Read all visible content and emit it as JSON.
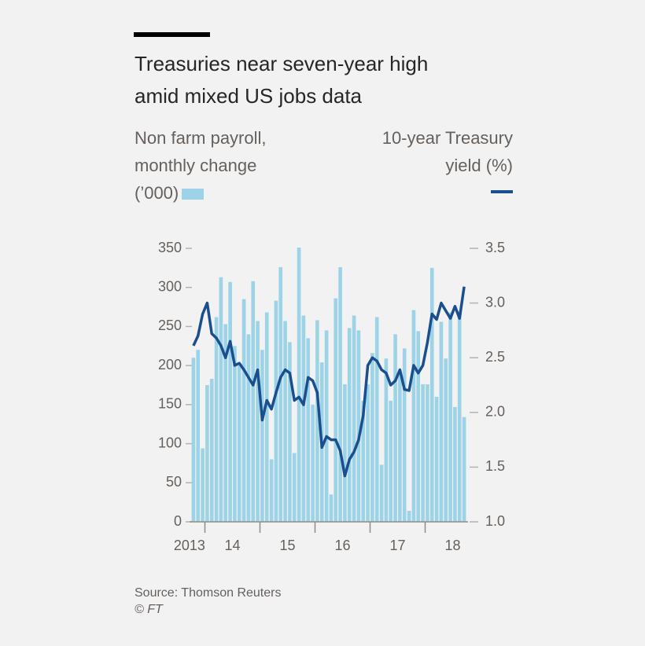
{
  "chart_data": {
    "type": "bar+line",
    "title": "Treasuries near seven-year high amid mixed US jobs data",
    "source": "Source: Thomson Reuters",
    "credit": "© FT",
    "x": [
      2013.75,
      2013.833,
      2013.917,
      2014,
      2014.083,
      2014.167,
      2014.25,
      2014.333,
      2014.417,
      2014.5,
      2014.583,
      2014.667,
      2014.75,
      2014.833,
      2014.917,
      2015,
      2015.083,
      2015.167,
      2015.25,
      2015.333,
      2015.417,
      2015.5,
      2015.583,
      2015.667,
      2015.75,
      2015.833,
      2015.917,
      2016,
      2016.083,
      2016.167,
      2016.25,
      2016.333,
      2016.417,
      2016.5,
      2016.583,
      2016.667,
      2016.75,
      2016.833,
      2016.917,
      2017,
      2017.083,
      2017.167,
      2017.25,
      2017.333,
      2017.417,
      2017.5,
      2017.583,
      2017.667,
      2017.75,
      2017.833,
      2017.917,
      2018,
      2018.083,
      2018.167,
      2018.25,
      2018.333,
      2018.417,
      2018.5,
      2018.583,
      2018.667
    ],
    "xlim": [
      2013.75,
      2018.75
    ],
    "xticks": [
      {
        "value": 2013.72,
        "label": "2013"
      },
      {
        "value": 2014.5,
        "label": "14"
      },
      {
        "value": 2015.5,
        "label": "15"
      },
      {
        "value": 2016.5,
        "label": "16"
      },
      {
        "value": 2017.5,
        "label": "17"
      },
      {
        "value": 2018.5,
        "label": "18"
      }
    ],
    "x_year_boundaries": [
      2014,
      2015,
      2016,
      2017,
      2018
    ],
    "ylim": [
      0,
      350
    ],
    "yticks": [
      0,
      50,
      100,
      150,
      200,
      250,
      300,
      350
    ],
    "y2lim": [
      1,
      3.5
    ],
    "y2ticks": [
      {
        "value": 1,
        "label": "1.0"
      },
      1.5,
      {
        "value": 2,
        "label": "2.0"
      },
      2.5,
      {
        "value": 3,
        "label": "3.0"
      },
      3.5
    ],
    "series": [
      {
        "name": "Non farm payroll, monthly change (’000)",
        "type": "bar",
        "color": "#9dd3e6",
        "values": [
          210,
          220,
          94,
          175,
          183,
          262,
          313,
          253,
          307,
          225,
          203,
          285,
          240,
          308,
          257,
          220,
          268,
          80,
          283,
          326,
          257,
          230,
          88,
          351,
          264,
          235,
          150,
          258,
          204,
          245,
          35,
          286,
          326,
          176,
          248,
          264,
          245,
          155,
          176,
          216,
          262,
          73,
          209,
          155,
          240,
          190,
          222,
          14,
          271,
          244,
          176,
          176,
          325,
          160,
          256,
          209,
          268,
          147,
          270,
          134
        ]
      },
      {
        "name": "10-year Treasury yield (%)",
        "type": "line",
        "axis": "y2",
        "color": "#1a4f8f",
        "values": [
          2.61,
          2.7,
          2.9,
          3.0,
          2.72,
          2.68,
          2.61,
          2.5,
          2.65,
          2.43,
          2.45,
          2.39,
          2.32,
          2.25,
          2.39,
          1.93,
          2.11,
          2.03,
          2.18,
          2.32,
          2.39,
          2.36,
          2.11,
          2.14,
          2.07,
          2.32,
          2.29,
          2.18,
          1.68,
          1.78,
          1.75,
          1.75,
          1.65,
          1.42,
          1.57,
          1.64,
          1.75,
          1.97,
          2.43,
          2.5,
          2.47,
          2.39,
          2.36,
          2.25,
          2.29,
          2.39,
          2.21,
          2.2,
          2.43,
          2.36,
          2.43,
          2.64,
          2.9,
          2.85,
          3.0,
          2.93,
          2.86,
          2.97,
          2.86,
          3.15
        ]
      }
    ]
  }
}
